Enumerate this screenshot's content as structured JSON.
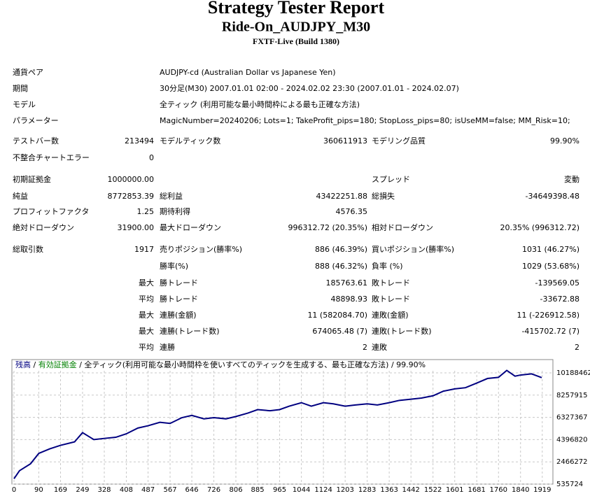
{
  "header": {
    "title": "Strategy Tester Report",
    "subtitle": "Ride-On_AUDJPY_M30",
    "server": "FXTF-Live (Build 1380)"
  },
  "info": [
    {
      "label": "通貨ペア",
      "value": "AUDJPY-cd (Australian Dollar vs Japanese Yen)"
    },
    {
      "label": "期間",
      "value": "30分足(M30) 2007.01.01 02:00 - 2024.02.02 23:30 (2007.01.01 - 2024.02.07)"
    },
    {
      "label": "モデル",
      "value": "全ティック (利用可能な最小時間枠による最も正確な方法)"
    },
    {
      "label": "パラメーター",
      "value": "MagicNumber=20240206; Lots=1; TakeProfit_pips=180; StopLoss_pips=80; isUseMM=false; MM_Risk=10;"
    }
  ],
  "stats": [
    [
      "テストバー数",
      "213494",
      "モデルティック数",
      "360611913",
      "モデリング品質",
      "99.90%"
    ],
    [
      "不整合チャートエラー",
      "0",
      null,
      null,
      null,
      null
    ],
    [
      "初期証拠金",
      "1000000.00",
      null,
      null,
      "スプレッド",
      "変動"
    ],
    [
      "純益",
      "8772853.39",
      "総利益",
      "43422251.88",
      "総損失",
      "-34649398.48"
    ],
    [
      "プロフィットファクタ",
      "1.25",
      "期待利得",
      "4576.35",
      null,
      null
    ],
    [
      "絶対ドローダウン",
      "31900.00",
      "最大ドローダウン",
      "996312.72 (20.35%)",
      "相対ドローダウン",
      "20.35% (996312.72)"
    ],
    [
      "総取引数",
      "1917",
      "売りポジション(勝率%)",
      "886 (46.39%)",
      "買いポジション(勝率%)",
      "1031 (46.27%)"
    ],
    [
      null,
      null,
      "勝率(%)",
      "888 (46.32%)",
      "負率 (%)",
      "1029 (53.68%)"
    ],
    [
      null,
      "最大",
      "勝トレード",
      "185763.61",
      "敗トレード",
      "-139569.05"
    ],
    [
      null,
      "平均",
      "勝トレード",
      "48898.93",
      "敗トレード",
      "-33672.88"
    ],
    [
      null,
      "最大",
      "連勝(金額)",
      "11 (582084.70)",
      "連敗(金額)",
      "11 (-226912.58)"
    ],
    [
      null,
      "最大",
      "連勝(トレード数)",
      "674065.48 (7)",
      "連敗(トレード数)",
      "-415702.72 (7)"
    ],
    [
      null,
      "平均",
      "連勝",
      "2",
      "連敗",
      "2"
    ]
  ],
  "chart_data": {
    "type": "line",
    "legend": [
      {
        "text": "残高",
        "color": "#000080"
      },
      {
        "text": " / ",
        "color": "#000000"
      },
      {
        "text": "有効証拠金",
        "color": "#008000"
      },
      {
        "text": " / 全ティック(利用可能な最小時間枠を使いすべてのティックを生成する、最も正確な方法) / 99.90%",
        "color": "#000000"
      }
    ],
    "x": [
      0,
      20,
      60,
      90,
      130,
      169,
      220,
      249,
      290,
      328,
      370,
      408,
      450,
      487,
      530,
      567,
      610,
      646,
      690,
      726,
      770,
      806,
      850,
      885,
      930,
      965,
      1000,
      1044,
      1080,
      1124,
      1160,
      1203,
      1240,
      1283,
      1320,
      1363,
      1400,
      1442,
      1480,
      1522,
      1560,
      1601,
      1640,
      1681,
      1720,
      1760,
      1790,
      1820,
      1840,
      1880,
      1917
    ],
    "series": [
      {
        "name": "残高",
        "color": "#000080",
        "values": [
          1000000,
          1700000,
          2300000,
          3200000,
          3600000,
          3900000,
          4200000,
          5000000,
          4400000,
          4500000,
          4600000,
          4900000,
          5400000,
          5600000,
          5900000,
          5800000,
          6300000,
          6500000,
          6200000,
          6300000,
          6200000,
          6400000,
          6700000,
          7000000,
          6900000,
          7000000,
          7300000,
          7600000,
          7300000,
          7600000,
          7500000,
          7300000,
          7400000,
          7500000,
          7400000,
          7600000,
          7800000,
          7900000,
          8000000,
          8200000,
          8600000,
          8800000,
          8900000,
          9300000,
          9700000,
          9800000,
          10400000,
          9900000,
          10000000,
          10100000,
          9772853
        ]
      }
    ],
    "xlim": [
      0,
      1950
    ],
    "ylim": [
      535724,
      11340000
    ],
    "xticks": [
      0,
      90,
      169,
      249,
      328,
      408,
      487,
      567,
      646,
      726,
      806,
      885,
      965,
      1044,
      1124,
      1203,
      1283,
      1363,
      1442,
      1522,
      1601,
      1681,
      1760,
      1840,
      1919
    ],
    "yticks": [
      535724,
      2466272,
      4396820,
      6327367,
      8257915,
      10188462
    ],
    "grid": true
  }
}
